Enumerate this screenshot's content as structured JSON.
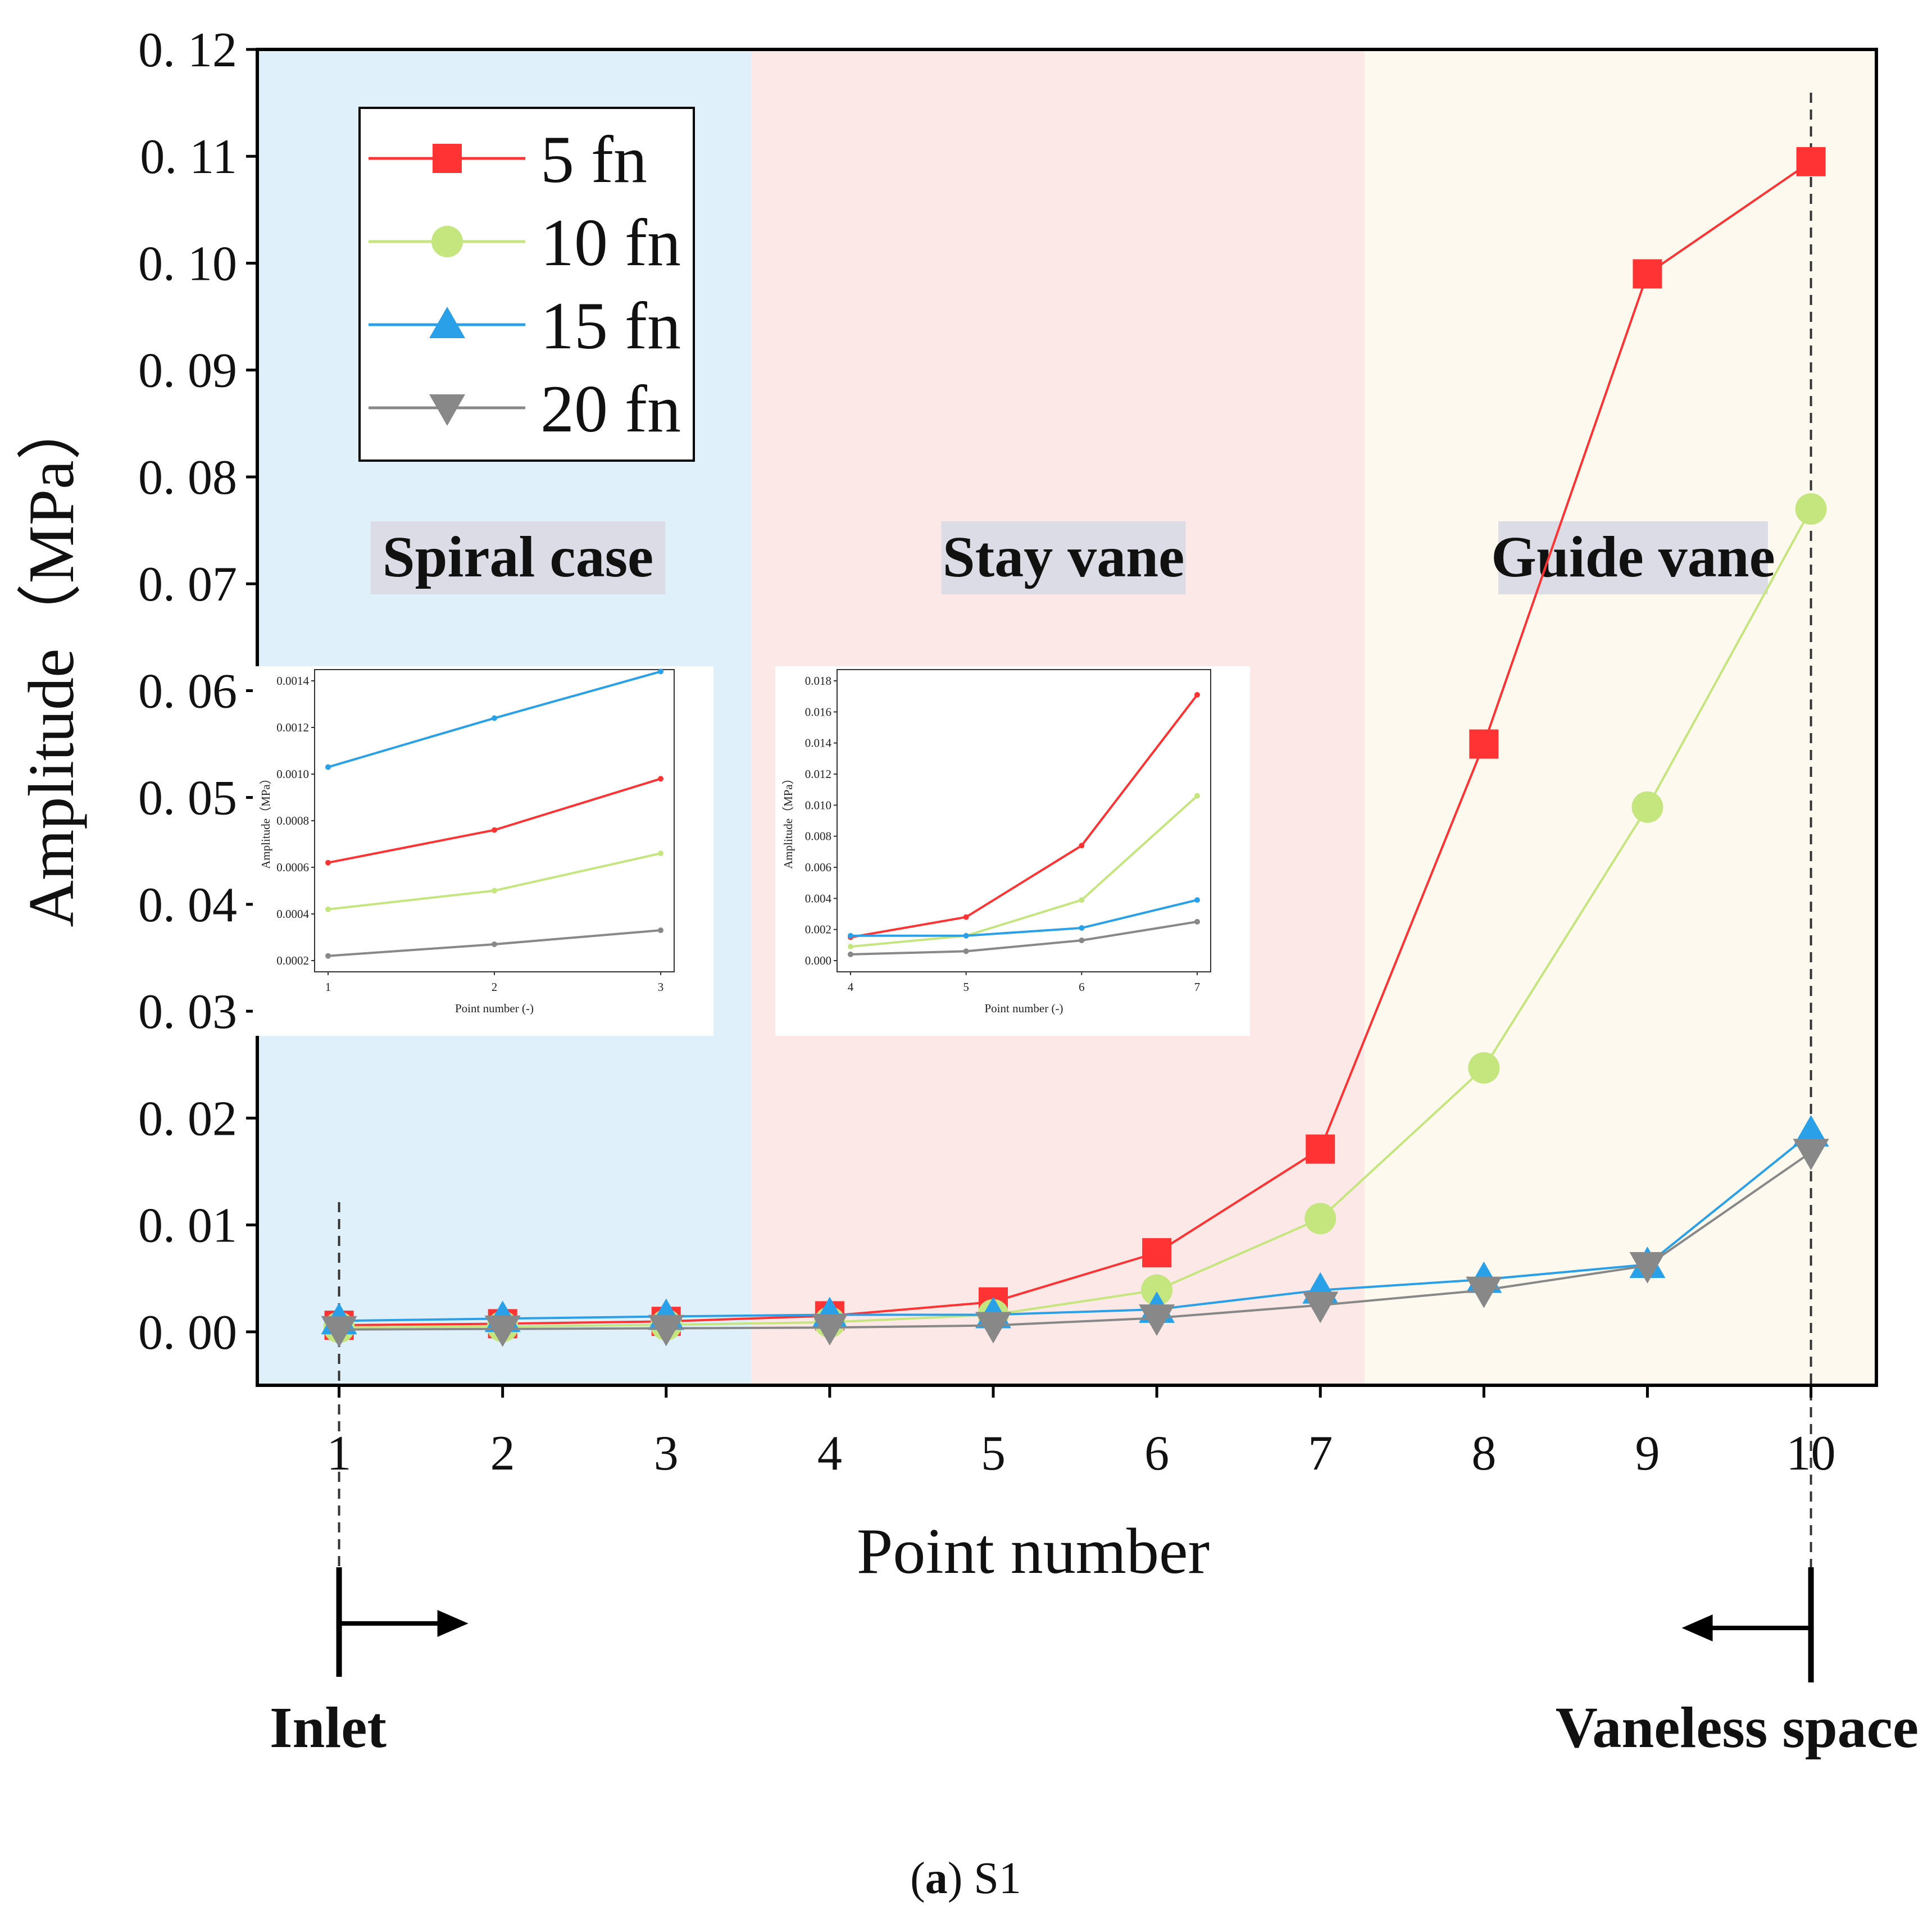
{
  "chart_data": {
    "type": "line",
    "xlabel": "Point number",
    "ylabel": "Amplitude（MPa）",
    "x": [
      1,
      2,
      3,
      4,
      5,
      6,
      7,
      8,
      9,
      10
    ],
    "xlim": [
      0.5,
      10.4
    ],
    "ylim": [
      -0.005,
      0.12
    ],
    "xticks": [
      "1",
      "2",
      "3",
      "4",
      "5",
      "6",
      "7",
      "8",
      "9",
      "10"
    ],
    "yticks": [
      "0. 00",
      "0. 01",
      "0. 02",
      "0. 03",
      "0. 04",
      "0. 05",
      "0. 06",
      "0. 07",
      "0. 08",
      "0. 09",
      "0. 10",
      "0. 11",
      "0. 12"
    ],
    "grid": false,
    "legend_position": "top-left",
    "series": [
      {
        "name": "5 fn",
        "color": "#ff3333",
        "marker": "square",
        "values": [
          0.00062,
          0.00076,
          0.00098,
          0.0015,
          0.0028,
          0.0074,
          0.0171,
          0.055,
          0.099,
          0.1095
        ]
      },
      {
        "name": "10 fn",
        "color": "#c5e57e",
        "marker": "circle",
        "values": [
          0.00042,
          0.0005,
          0.00066,
          0.0009,
          0.0016,
          0.0039,
          0.0106,
          0.0247,
          0.0491,
          0.077
        ]
      },
      {
        "name": "15 fn",
        "color": "#2aa0e8",
        "marker": "triangle-up",
        "values": [
          0.00103,
          0.00124,
          0.00144,
          0.0016,
          0.0016,
          0.0021,
          0.0039,
          0.0049,
          0.0063,
          0.0186
        ]
      },
      {
        "name": "20 fn",
        "color": "#888888",
        "marker": "triangle-down",
        "values": [
          0.00022,
          0.00027,
          0.00033,
          0.0004,
          0.0006,
          0.0013,
          0.0025,
          0.0039,
          0.0062,
          0.0168
        ]
      }
    ],
    "regions": [
      {
        "label": "Spiral case",
        "from": 0.5,
        "to": 3.52,
        "color": "#dff0fa"
      },
      {
        "label": "Stay vane",
        "from": 3.52,
        "to": 7.27,
        "color": "#fce8e6"
      },
      {
        "label": "Guide vane",
        "from": 7.27,
        "to": 10.4,
        "color": "#fdf9ef"
      }
    ],
    "markers_below": {
      "inlet": "Inlet",
      "vaneless": "Vaneless space"
    },
    "insets": [
      {
        "xlabel": "Point number (-)",
        "ylabel": "Amplitude（MPa）",
        "x": [
          1,
          2,
          3
        ],
        "xticks": [
          "1",
          "2",
          "3"
        ],
        "ylim": [
          0.0002,
          0.0014
        ],
        "yticks": [
          "0.0002",
          "0.0004",
          "0.0006",
          "0.0008",
          "0.0010",
          "0.0012",
          "0.0014"
        ],
        "series": [
          {
            "values": [
              0.00062,
              0.00076,
              0.00098
            ]
          },
          {
            "values": [
              0.00042,
              0.0005,
              0.00066
            ]
          },
          {
            "values": [
              0.00103,
              0.00124,
              0.00144
            ]
          },
          {
            "values": [
              0.00022,
              0.00027,
              0.00033
            ]
          }
        ]
      },
      {
        "xlabel": "Point number (-)",
        "ylabel": "Amplitude（MPa）",
        "x": [
          4,
          5,
          6,
          7
        ],
        "xticks": [
          "4",
          "5",
          "6",
          "7"
        ],
        "ylim": [
          0,
          0.018
        ],
        "yticks": [
          "0.000",
          "0.002",
          "0.004",
          "0.006",
          "0.008",
          "0.010",
          "0.012",
          "0.014",
          "0.016",
          "0.018"
        ],
        "series": [
          {
            "values": [
              0.0015,
              0.0028,
              0.0074,
              0.0171
            ]
          },
          {
            "values": [
              0.0009,
              0.0016,
              0.0039,
              0.0106
            ]
          },
          {
            "values": [
              0.0016,
              0.0016,
              0.0021,
              0.0039
            ]
          },
          {
            "values": [
              0.0004,
              0.0006,
              0.0013,
              0.0025
            ]
          }
        ]
      }
    ]
  },
  "caption": {
    "letter": "(a)",
    "text": " S1"
  }
}
